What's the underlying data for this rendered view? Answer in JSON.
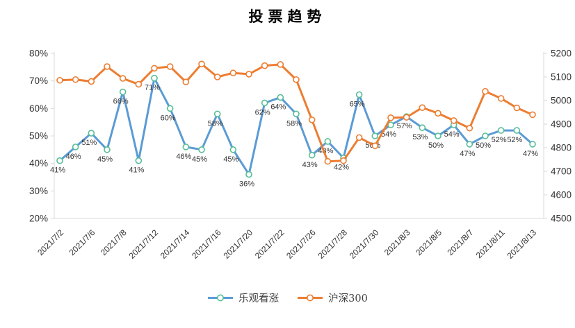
{
  "title": "投票趋势",
  "legend": {
    "items": [
      {
        "label": "乐观看涨",
        "color": "#5B9BD5",
        "marker_border": "#55BE96"
      },
      {
        "label": "沪深300",
        "color": "#ED7D31",
        "marker_border": "#ED7D31"
      }
    ]
  },
  "chart_data": {
    "type": "line",
    "title": "投票趋势",
    "n_points": 31,
    "tick_every": 2,
    "x_tick_labels": [
      "2021/7/2",
      "2021/7/6",
      "2021/7/8",
      "2021/7/12",
      "2021/7/14",
      "2021/7/16",
      "2021/7/20",
      "2021/7/22",
      "2021/7/26",
      "2021/7/28",
      "2021/7/30",
      "2021/8/3",
      "2021/8/5",
      "2021/8/7",
      "2021/8/11",
      "2021/8/13"
    ],
    "left_axis": {
      "min": 20,
      "max": 80,
      "unit": "%",
      "tick_labels": [
        "80%",
        "70%",
        "60%",
        "50%",
        "40%",
        "30%",
        "20%"
      ]
    },
    "right_axis": {
      "min": 4500,
      "max": 5200,
      "unit": "",
      "tick_labels": [
        "5200",
        "5100",
        "5000",
        "4900",
        "4800",
        "4700",
        "4600",
        "4500"
      ]
    },
    "legend_position": "bottom",
    "grid": false,
    "series": [
      {
        "name": "乐观看涨",
        "axis": "left",
        "color": "#5B9BD5",
        "marker_border": "#55BE96",
        "values": [
          41,
          46,
          51,
          45,
          66,
          41,
          71,
          60,
          46,
          45,
          58,
          45,
          36,
          62,
          64,
          58,
          43,
          48,
          42,
          65,
          50,
          54,
          57,
          53,
          50,
          54,
          47,
          50,
          52,
          52,
          47
        ],
        "labels": [
          "41%",
          "46%",
          "51%",
          "45%",
          "66%",
          "41%",
          "71%",
          "60%",
          "46%",
          "45%",
          "58%",
          "45%",
          "36%",
          "62%",
          "64%",
          "58%",
          "43%",
          "48%",
          "42%",
          "65%",
          "50%",
          "54%",
          "57%",
          "53%",
          "50%",
          "54%",
          "47%",
          "50%",
          "52%",
          "52%",
          "47%"
        ]
      },
      {
        "name": "沪深300",
        "axis": "right",
        "color": "#ED7D31",
        "marker_border": "#ED7D31",
        "values": [
          5086,
          5089,
          5081,
          5144,
          5094,
          5069,
          5137,
          5144,
          5079,
          5155,
          5100,
          5117,
          5112,
          5148,
          5153,
          5089,
          4918,
          4742,
          4745,
          4843,
          4808,
          4927,
          4929,
          4970,
          4946,
          4915,
          4883,
          5039,
          5009,
          4969,
          4940
        ],
        "labels": null
      }
    ],
    "colors": {
      "axis_line": "#D9D9D9",
      "axis_tick_label": "#333333",
      "data_label": "#333333"
    }
  }
}
